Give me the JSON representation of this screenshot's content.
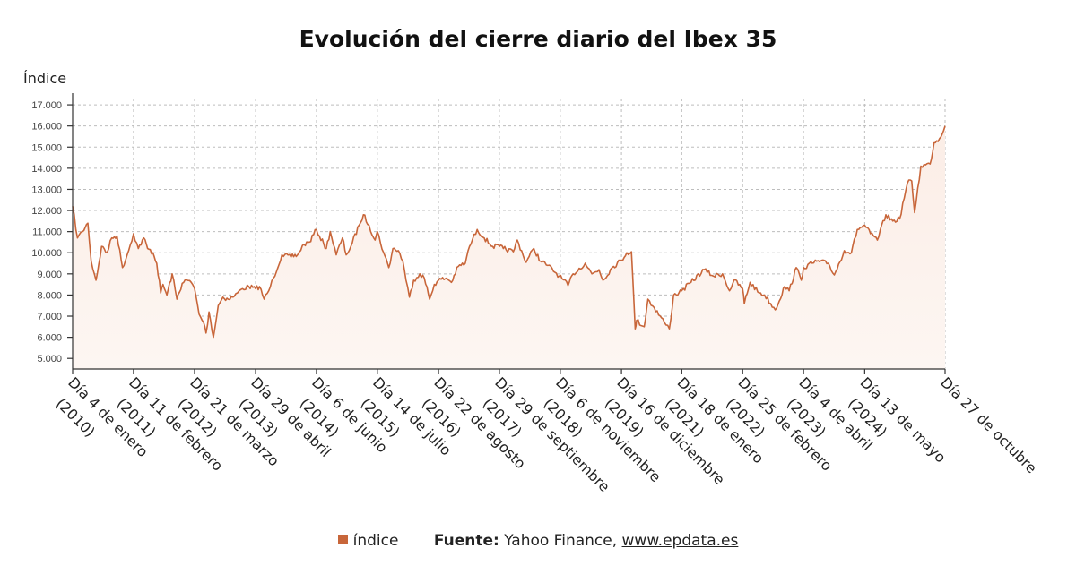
{
  "footer": {
    "legend_label": "índice",
    "source_label": "Fuente:",
    "source_name": "Yahoo Finance,",
    "source_link": "www.epdata.es"
  },
  "chart_data": {
    "type": "line",
    "title": "Evolución del cierre diario del Ibex 35",
    "ylabel": "Índice",
    "ylim": [
      4500,
      17300
    ],
    "yticks": [
      5000,
      6000,
      7000,
      8000,
      9000,
      10000,
      11000,
      12000,
      13000,
      14000,
      15000,
      16000,
      17000
    ],
    "ytick_labels": [
      "5.000",
      "6.000",
      "7.000",
      "8.000",
      "9.000",
      "10.000",
      "11.000",
      "12.000",
      "13.000",
      "14.000",
      "15.000",
      "16.000",
      "17.000"
    ],
    "xlim": [
      "2010-01-04",
      "2025-10-27"
    ],
    "x_ticks": [
      {
        "date": "2010-01-04",
        "lines": [
          "Día 4 de enero",
          "(2010)"
        ]
      },
      {
        "date": "2011-02-11",
        "lines": [
          "Día 11 de febrero",
          "(2011)"
        ]
      },
      {
        "date": "2012-03-21",
        "lines": [
          "Día 21 de marzo",
          "(2012)"
        ]
      },
      {
        "date": "2013-04-29",
        "lines": [
          "Día 29 de abril",
          "(2013)"
        ]
      },
      {
        "date": "2014-06-06",
        "lines": [
          "Día 6 de junio",
          "(2014)"
        ]
      },
      {
        "date": "2015-07-14",
        "lines": [
          "Día 14 de julio",
          "(2015)"
        ]
      },
      {
        "date": "2016-08-22",
        "lines": [
          "Día 22 de agosto",
          "(2016)"
        ]
      },
      {
        "date": "2017-09-29",
        "lines": [
          "Día 29 de septiembre",
          "(2017)"
        ]
      },
      {
        "date": "2018-11-06",
        "lines": [
          "Día 6 de noviembre",
          "(2018)"
        ]
      },
      {
        "date": "2019-12-16",
        "lines": [
          "Día 16 de diciembre",
          "(2019)"
        ]
      },
      {
        "date": "2021-01-18",
        "lines": [
          "Día 18 de enero",
          "(2021)"
        ]
      },
      {
        "date": "2022-02-25",
        "lines": [
          "Día 25 de febrero",
          "(2022)"
        ]
      },
      {
        "date": "2023-04-04",
        "lines": [
          "Día 4 de abril",
          "(2023)"
        ]
      },
      {
        "date": "2024-05-13",
        "lines": [
          "Día 13 de mayo",
          "(2024)"
        ]
      },
      {
        "date": "2025-10-27",
        "lines": [
          "Día 27 de octubre"
        ]
      }
    ],
    "grid": true,
    "legend_position": "bottom",
    "series": [
      {
        "name": "índice",
        "color": "#c8663a",
        "fill": "#fbede6",
        "points": [
          [
            "2010-01-04",
            12200
          ],
          [
            "2010-02-05",
            10700
          ],
          [
            "2010-03-10",
            11000
          ],
          [
            "2010-04-15",
            11400
          ],
          [
            "2010-05-07",
            9600
          ],
          [
            "2010-06-08",
            8700
          ],
          [
            "2010-07-15",
            10300
          ],
          [
            "2010-08-20",
            10000
          ],
          [
            "2010-09-20",
            10700
          ],
          [
            "2010-10-25",
            10800
          ],
          [
            "2010-11-30",
            9300
          ],
          [
            "2010-12-31",
            9900
          ],
          [
            "2011-02-11",
            10900
          ],
          [
            "2011-03-15",
            10200
          ],
          [
            "2011-04-20",
            10700
          ],
          [
            "2011-05-15",
            10200
          ],
          [
            "2011-06-20",
            10000
          ],
          [
            "2011-07-15",
            9500
          ],
          [
            "2011-08-10",
            8100
          ],
          [
            "2011-08-25",
            8500
          ],
          [
            "2011-09-20",
            8000
          ],
          [
            "2011-10-25",
            9000
          ],
          [
            "2011-11-25",
            7800
          ],
          [
            "2011-12-30",
            8550
          ],
          [
            "2012-01-30",
            8700
          ],
          [
            "2012-02-28",
            8600
          ],
          [
            "2012-03-21",
            8300
          ],
          [
            "2012-04-20",
            7100
          ],
          [
            "2012-05-20",
            6700
          ],
          [
            "2012-06-05",
            6200
          ],
          [
            "2012-06-25",
            7200
          ],
          [
            "2012-07-24",
            6000
          ],
          [
            "2012-08-25",
            7500
          ],
          [
            "2012-09-25",
            7900
          ],
          [
            "2012-10-30",
            7800
          ],
          [
            "2012-11-30",
            7900
          ],
          [
            "2012-12-30",
            8100
          ],
          [
            "2013-02-01",
            8300
          ],
          [
            "2013-03-15",
            8400
          ],
          [
            "2013-04-29",
            8300
          ],
          [
            "2013-05-25",
            8400
          ],
          [
            "2013-06-25",
            7800
          ],
          [
            "2013-07-25",
            8200
          ],
          [
            "2013-08-25",
            8800
          ],
          [
            "2013-10-20",
            9900
          ],
          [
            "2013-12-20",
            9800
          ],
          [
            "2014-02-01",
            9900
          ],
          [
            "2014-03-15",
            10400
          ],
          [
            "2014-04-20",
            10500
          ],
          [
            "2014-06-06",
            11100
          ],
          [
            "2014-07-25",
            10400
          ],
          [
            "2014-08-10",
            10200
          ],
          [
            "2014-09-05",
            11000
          ],
          [
            "2014-10-15",
            9900
          ],
          [
            "2014-11-25",
            10700
          ],
          [
            "2014-12-20",
            9900
          ],
          [
            "2015-01-20",
            10300
          ],
          [
            "2015-03-15",
            11300
          ],
          [
            "2015-04-13",
            11800
          ],
          [
            "2015-05-20",
            11300
          ],
          [
            "2015-06-29",
            10600
          ],
          [
            "2015-07-14",
            11000
          ],
          [
            "2015-08-25",
            10000
          ],
          [
            "2015-09-28",
            9300
          ],
          [
            "2015-10-25",
            10200
          ],
          [
            "2015-11-30",
            10100
          ],
          [
            "2015-12-30",
            9600
          ],
          [
            "2016-01-20",
            8700
          ],
          [
            "2016-02-11",
            7900
          ],
          [
            "2016-03-10",
            8700
          ],
          [
            "2016-04-20",
            9000
          ],
          [
            "2016-05-20",
            8800
          ],
          [
            "2016-06-24",
            7800
          ],
          [
            "2016-07-25",
            8500
          ],
          [
            "2016-08-22",
            8700
          ],
          [
            "2016-10-15",
            8800
          ],
          [
            "2016-11-15",
            8600
          ],
          [
            "2016-12-30",
            9350
          ],
          [
            "2017-02-15",
            9500
          ],
          [
            "2017-03-15",
            10300
          ],
          [
            "2017-05-05",
            11100
          ],
          [
            "2017-06-20",
            10700
          ],
          [
            "2017-08-15",
            10300
          ],
          [
            "2017-09-29",
            10300
          ],
          [
            "2017-10-25",
            10200
          ],
          [
            "2017-12-30",
            10050
          ],
          [
            "2018-01-25",
            10600
          ],
          [
            "2018-03-25",
            9550
          ],
          [
            "2018-05-15",
            10200
          ],
          [
            "2018-06-28",
            9600
          ],
          [
            "2018-08-15",
            9400
          ],
          [
            "2018-10-30",
            8900
          ],
          [
            "2018-12-27",
            8450
          ],
          [
            "2019-01-30",
            9000
          ],
          [
            "2019-04-20",
            9500
          ],
          [
            "2019-06-03",
            9000
          ],
          [
            "2019-07-20",
            9200
          ],
          [
            "2019-08-15",
            8700
          ],
          [
            "2019-10-15",
            9300
          ],
          [
            "2019-12-16",
            9650
          ],
          [
            "2020-01-20",
            10000
          ],
          [
            "2020-02-20",
            10050
          ],
          [
            "2020-03-16",
            6400
          ],
          [
            "2020-03-25",
            6800
          ],
          [
            "2020-05-15",
            6500
          ],
          [
            "2020-06-08",
            7800
          ],
          [
            "2020-07-20",
            7400
          ],
          [
            "2020-09-25",
            6700
          ],
          [
            "2020-10-28",
            6400
          ],
          [
            "2020-11-25",
            8000
          ],
          [
            "2020-12-30",
            8100
          ],
          [
            "2021-01-18",
            8200
          ],
          [
            "2021-03-20",
            8600
          ],
          [
            "2021-06-15",
            9200
          ],
          [
            "2021-08-15",
            8900
          ],
          [
            "2021-10-15",
            9000
          ],
          [
            "2021-11-30",
            8200
          ],
          [
            "2021-12-30",
            8700
          ],
          [
            "2022-02-25",
            8300
          ],
          [
            "2022-03-08",
            7600
          ],
          [
            "2022-04-15",
            8600
          ],
          [
            "2022-06-15",
            8100
          ],
          [
            "2022-07-20",
            8000
          ],
          [
            "2022-09-29",
            7300
          ],
          [
            "2022-11-30",
            8400
          ],
          [
            "2022-12-30",
            8200
          ],
          [
            "2023-02-15",
            9300
          ],
          [
            "2023-03-20",
            8700
          ],
          [
            "2023-04-04",
            9300
          ],
          [
            "2023-06-30",
            9600
          ],
          [
            "2023-09-15",
            9500
          ],
          [
            "2023-10-25",
            8950
          ],
          [
            "2023-12-30",
            10100
          ],
          [
            "2024-02-15",
            10000
          ],
          [
            "2024-03-25",
            11100
          ],
          [
            "2024-05-13",
            11300
          ],
          [
            "2024-06-20",
            10900
          ],
          [
            "2024-08-05",
            10600
          ],
          [
            "2024-09-30",
            11800
          ],
          [
            "2024-11-15",
            11500
          ],
          [
            "2024-12-30",
            11600
          ],
          [
            "2025-02-20",
            13300
          ],
          [
            "2025-03-20",
            13400
          ],
          [
            "2025-04-08",
            11900
          ],
          [
            "2025-05-20",
            14100
          ],
          [
            "2025-07-20",
            14200
          ],
          [
            "2025-08-15",
            15200
          ],
          [
            "2025-09-20",
            15400
          ],
          [
            "2025-10-27",
            16000
          ]
        ]
      }
    ]
  }
}
